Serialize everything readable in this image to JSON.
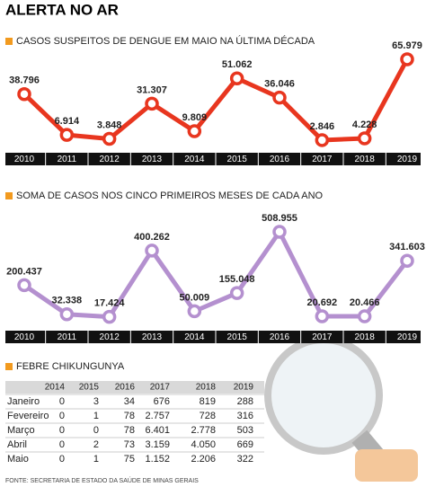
{
  "title": "ALERTA NO AR",
  "chart_data": [
    {
      "type": "line",
      "title": "CASOS SUSPEITOS DE DENGUE EM MAIO NA ÚLTIMA DÉCADA",
      "categories": [
        "2010",
        "2011",
        "2012",
        "2013",
        "2014",
        "2015",
        "2016",
        "2017",
        "2018",
        "2019"
      ],
      "values": [
        38796,
        6914,
        3848,
        31307,
        9809,
        51062,
        36046,
        2846,
        4228,
        65979
      ],
      "value_labels": [
        "38.796",
        "6.914",
        "3.848",
        "31.307",
        "9.809",
        "51.062",
        "36.046",
        "2.846",
        "4.228",
        "65.979"
      ],
      "color": "#e8361f"
    },
    {
      "type": "line",
      "title": "SOMA DE CASOS NOS CINCO PRIMEIROS MESES DE CADA ANO",
      "categories": [
        "2010",
        "2011",
        "2012",
        "2013",
        "2014",
        "2015",
        "2016",
        "2017",
        "2018",
        "2019"
      ],
      "values": [
        200437,
        32338,
        17424,
        400262,
        50009,
        155048,
        508955,
        20692,
        20466,
        341603
      ],
      "value_labels": [
        "200.437",
        "32.338",
        "17.424",
        "400.262",
        "50.009",
        "155.048",
        "508.955",
        "20.692",
        "20.466",
        "341.603"
      ],
      "color": "#b490cf"
    }
  ],
  "table": {
    "title": "FEBRE CHIKUNGUNYA",
    "header": [
      "2014",
      "2015",
      "2016",
      "2017",
      "2018",
      "2019"
    ],
    "rows": [
      [
        "Janeiro",
        "0",
        "3",
        "34",
        "676",
        "819",
        "288"
      ],
      [
        "Fevereiro",
        "0",
        "1",
        "78",
        "2.757",
        "728",
        "316"
      ],
      [
        "Março",
        "0",
        "0",
        "78",
        "6.401",
        "2.778",
        "503"
      ],
      [
        "Abril",
        "0",
        "2",
        "73",
        "3.159",
        "4.050",
        "669"
      ],
      [
        "Maio",
        "0",
        "1",
        "75",
        "1.152",
        "2.206",
        "322"
      ]
    ]
  },
  "source": "FONTE: SECRETARIA DE ESTADO DA SAÚDE DE MINAS GERAIS"
}
